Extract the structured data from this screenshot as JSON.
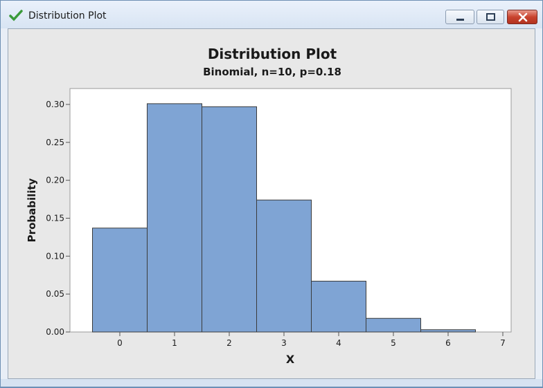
{
  "window": {
    "title": "Distribution Plot",
    "icon": "checkmark-icon",
    "controls": [
      "minimize-icon",
      "maximize-icon",
      "close-icon"
    ]
  },
  "chart_data": {
    "type": "bar",
    "title": "Distribution Plot",
    "subtitle": "Binomial, n=10, p=0.18",
    "xlabel": "X",
    "ylabel": "Probability",
    "categories": [
      "0",
      "1",
      "2",
      "3",
      "4",
      "5",
      "6",
      "7"
    ],
    "values": [
      0.137,
      0.301,
      0.297,
      0.174,
      0.067,
      0.018,
      0.003,
      0.0
    ],
    "xlim": [
      -0.7,
      7.1
    ],
    "ylim": [
      0.0,
      0.32
    ],
    "yticks": [
      "0.00",
      "0.05",
      "0.10",
      "0.15",
      "0.20",
      "0.25",
      "0.30"
    ],
    "xticks": [
      "0",
      "1",
      "2",
      "3",
      "4",
      "5",
      "6",
      "7"
    ],
    "bar_color": "#7fa4d4",
    "grid": false
  }
}
